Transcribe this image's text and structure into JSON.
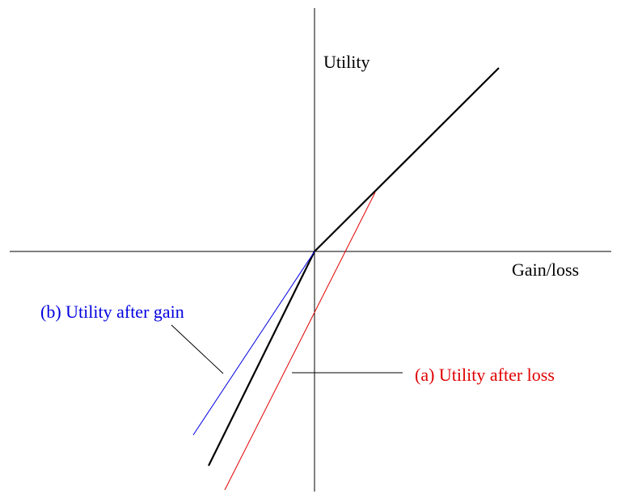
{
  "axes": {
    "y_label": "Utility",
    "x_label": "Gain/loss"
  },
  "annotations": {
    "after_gain": "(b) Utility after gain",
    "after_loss": "(a) Utility after loss"
  }
}
